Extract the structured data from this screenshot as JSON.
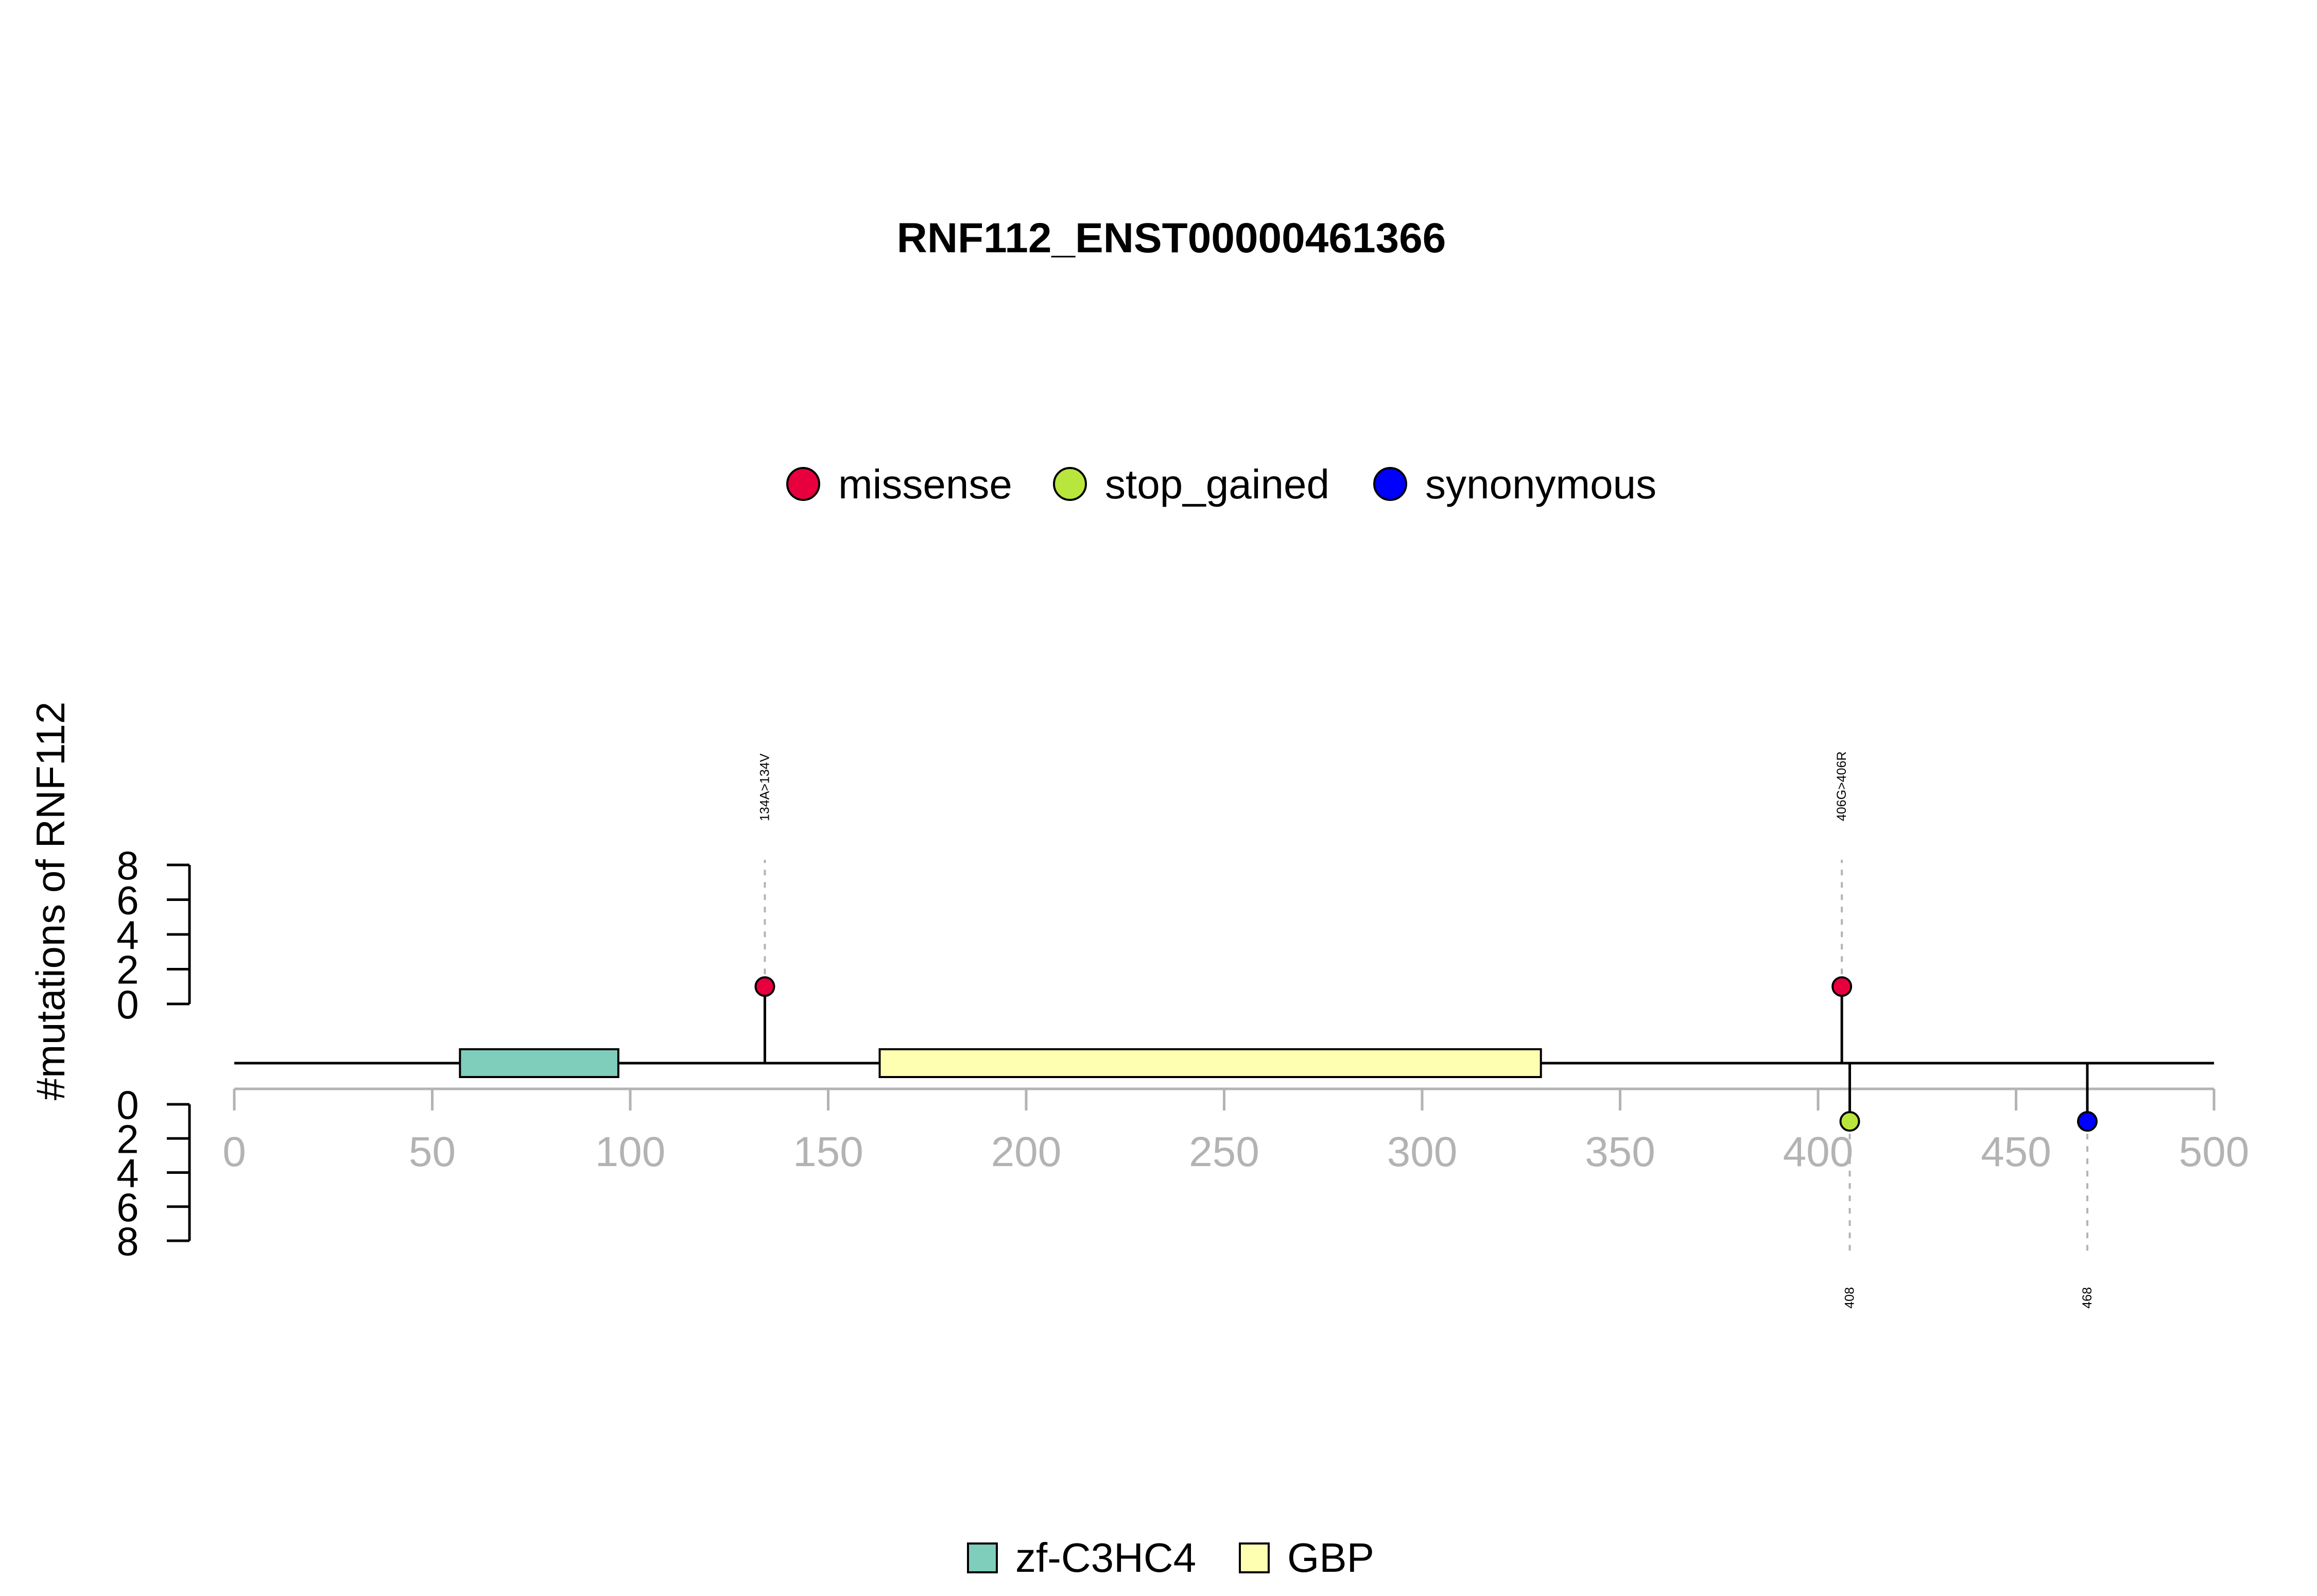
{
  "chart_data": {
    "type": "lollipop",
    "title": "RNF112_ENST00000461366",
    "ylabel": "#mutations of RNF112",
    "xlim": [
      0,
      500
    ],
    "x_ticks": [
      0,
      50,
      100,
      150,
      200,
      250,
      300,
      350,
      400,
      450,
      500
    ],
    "y_ticks": [
      0,
      2,
      4,
      6,
      8
    ],
    "ylim": [
      0,
      8
    ],
    "mutation_legend": [
      {
        "name": "missense",
        "color": "#e8003e"
      },
      {
        "name": "stop_gained",
        "color": "#b8e63d"
      },
      {
        "name": "synonymous",
        "color": "#0000ff"
      }
    ],
    "domain_legend": [
      {
        "name": "zf-C3HC4",
        "color": "#7fcdbb"
      },
      {
        "name": "GBP",
        "color": "#ffffb2"
      }
    ],
    "domains": [
      {
        "name": "zf-C3HC4",
        "start": 57,
        "end": 97,
        "color": "#7fcdbb"
      },
      {
        "name": "GBP",
        "start": 163,
        "end": 330,
        "color": "#ffffb2"
      }
    ],
    "mutations": [
      {
        "position": 134,
        "count": 1,
        "type": "missense",
        "label": "134A>134V",
        "side": "top"
      },
      {
        "position": 406,
        "count": 1,
        "type": "missense",
        "label": "406G>406R",
        "side": "top"
      },
      {
        "position": 408,
        "count": 1,
        "type": "stop_gained",
        "label": "408",
        "side": "bottom"
      },
      {
        "position": 468,
        "count": 1,
        "type": "synonymous",
        "label": "468",
        "side": "bottom"
      }
    ]
  }
}
